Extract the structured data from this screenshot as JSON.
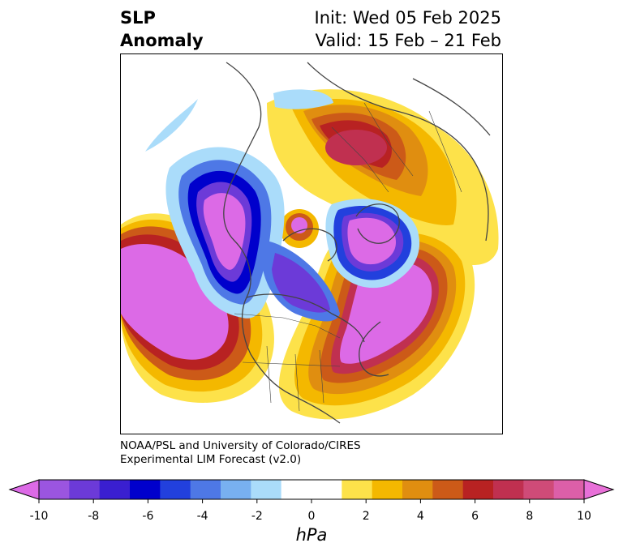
{
  "title": {
    "left_line1": "SLP",
    "left_line2": "Anomaly",
    "right_line1": "Init: Wed 05 Feb 2025",
    "right_line2": "Valid: 15 Feb – 21 Feb"
  },
  "credit": {
    "line1": "NOAA/PSL and University of Colorado/CIRES",
    "line2": "Experimental LIM Forecast (v2.0)"
  },
  "colorbar": {
    "unit": "hPa",
    "ticks": [
      "-10",
      "-8",
      "-6",
      "-4",
      "-2",
      "0",
      "2",
      "4",
      "6",
      "8",
      "10"
    ],
    "colors": [
      "#9b55e0",
      "#6c3ad8",
      "#3a1fd0",
      "#0000cc",
      "#2240dd",
      "#4e78e6",
      "#78b0f0",
      "#aadcfa",
      "#ffffff",
      "#ffffff",
      "#fde24a",
      "#f4b800",
      "#e08e10",
      "#cc5a18",
      "#b82222",
      "#c03050",
      "#cf4b78",
      "#dc5fa8"
    ],
    "under_color": "#dc6ae6",
    "over_color": "#e870d8"
  }
}
